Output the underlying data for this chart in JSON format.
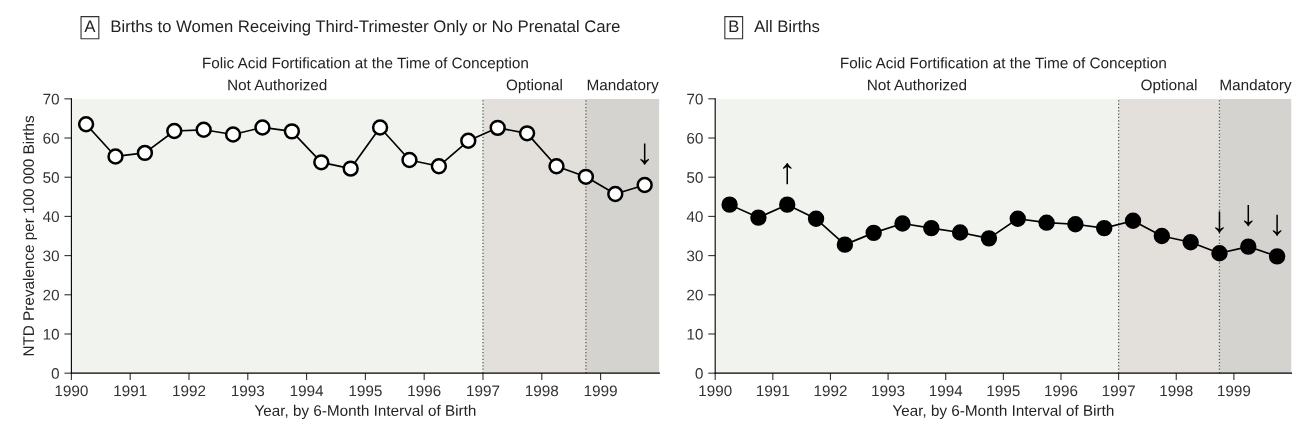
{
  "chart_data": [
    {
      "type": "line",
      "title": "Births to Women Receiving Third-Trimester Only or No Prenatal Care",
      "subtitle": "Folic Acid Fortification at the Time of Conception",
      "xlabel": "Year, by 6-Month Interval of Birth",
      "ylabel": "NTD Prevalence per 100 000 Births",
      "annotations": [
        "A",
        {
          "text": "↓",
          "x": 1999.75,
          "y": 48.0
        }
      ],
      "x": [
        1990.25,
        1990.75,
        1991.25,
        1991.75,
        1992.25,
        1992.75,
        1993.25,
        1993.75,
        1994.25,
        1994.75,
        1995.25,
        1995.75,
        1996.25,
        1996.75,
        1997.25,
        1997.75,
        1998.25,
        1998.75,
        1999.25,
        1999.75
      ],
      "series": [
        {
          "color": "#ffffff",
          "values": [
            63.5,
            55.3,
            56.2,
            61.8,
            62.1,
            60.9,
            62.7,
            61.7,
            53.8,
            52.2,
            62.7,
            54.4,
            52.8,
            59.3,
            62.6,
            61.2,
            52.8,
            50.1,
            45.7,
            48.0
          ]
        }
      ],
      "marker": "circle",
      "line_style": "solid",
      "grid": false,
      "legend": false,
      "xlim": [
        1990,
        2000
      ],
      "xticks": [
        1990,
        1991,
        1992,
        1993,
        1994,
        1995,
        1996,
        1997,
        1998,
        1999
      ],
      "ylim": [
        0,
        70
      ],
      "yticks": [
        0,
        10,
        20,
        30,
        40,
        50,
        60,
        70
      ],
      "bands": [
        {
          "axis": "x",
          "from": 1990,
          "to": 1997,
          "label": "Not Authorized",
          "color": "#f1f3ee"
        },
        {
          "axis": "x",
          "from": 1997,
          "to": 1998.75,
          "label": "Optional",
          "color": "#e3e0db"
        },
        {
          "axis": "x",
          "from": 1998.75,
          "to": 2000,
          "label": "Mandatory",
          "color": "#d4d3cf"
        }
      ],
      "ref_lines": [
        {
          "axis": "x",
          "value": 1997,
          "line_style": "dotted",
          "color": "#555555"
        },
        {
          "axis": "x",
          "value": 1998.75,
          "line_style": "dotted",
          "color": "#555555"
        }
      ]
    },
    {
      "type": "line",
      "title": "All Births",
      "subtitle": "Folic Acid Fortification at the Time of Conception",
      "xlabel": "Year, by 6-Month Interval of Birth",
      "annotations": [
        "B",
        {
          "text": "↑",
          "x": 1991.25,
          "y": 43.0
        },
        {
          "text": "↓",
          "x": 1998.75,
          "y": 30.6
        },
        {
          "text": "↓",
          "x": 1999.25,
          "y": 32.3
        },
        {
          "text": "↓",
          "x": 1999.75,
          "y": 29.8
        }
      ],
      "x": [
        1990.25,
        1990.75,
        1991.25,
        1991.75,
        1992.25,
        1992.75,
        1993.25,
        1993.75,
        1994.25,
        1994.75,
        1995.25,
        1995.75,
        1996.25,
        1996.75,
        1997.25,
        1997.75,
        1998.25,
        1998.75,
        1999.25,
        1999.75
      ],
      "series": [
        {
          "color": "#000000",
          "values": [
            43.0,
            39.7,
            43.0,
            39.4,
            32.8,
            35.8,
            38.2,
            37.0,
            35.9,
            34.4,
            39.4,
            38.4,
            38.0,
            37.0,
            38.9,
            35.0,
            33.4,
            30.6,
            32.3,
            29.8
          ]
        }
      ],
      "marker": "circle",
      "line_style": "solid",
      "grid": false,
      "legend": false,
      "xlim": [
        1990,
        2000
      ],
      "xticks": [
        1990,
        1991,
        1992,
        1993,
        1994,
        1995,
        1996,
        1997,
        1998,
        1999
      ],
      "ylim": [
        0,
        70
      ],
      "yticks": [
        0,
        10,
        20,
        30,
        40,
        50,
        60,
        70
      ],
      "bands": [
        {
          "axis": "x",
          "from": 1990,
          "to": 1997,
          "label": "Not Authorized",
          "color": "#f1f3ee"
        },
        {
          "axis": "x",
          "from": 1997,
          "to": 1998.75,
          "label": "Optional",
          "color": "#e3e0db"
        },
        {
          "axis": "x",
          "from": 1998.75,
          "to": 2000,
          "label": "Mandatory",
          "color": "#d4d3cf"
        }
      ],
      "ref_lines": [
        {
          "axis": "x",
          "value": 1997,
          "line_style": "dotted",
          "color": "#555555"
        },
        {
          "axis": "x",
          "value": 1998.75,
          "line_style": "dotted",
          "color": "#555555"
        }
      ]
    }
  ]
}
